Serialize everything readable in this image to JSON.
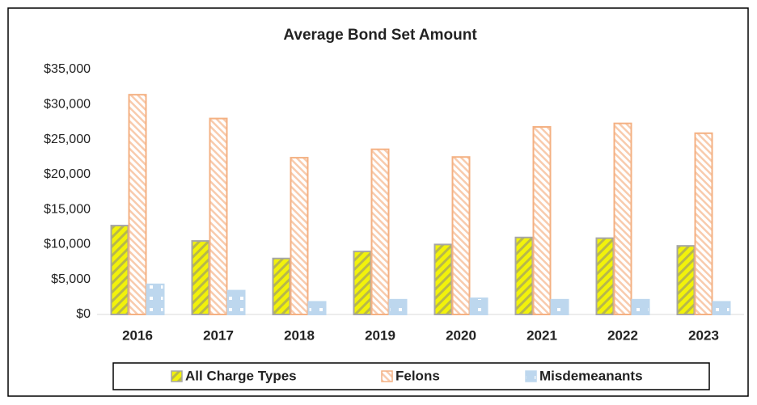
{
  "chart_data": {
    "type": "bar",
    "title": "Average Bond Set Amount",
    "categories": [
      "2016",
      "2017",
      "2018",
      "2019",
      "2020",
      "2021",
      "2022",
      "2023"
    ],
    "series": [
      {
        "name": "All Charge Types",
        "color": "#f2f20a",
        "values": [
          12700,
          10500,
          8000,
          9000,
          10000,
          11000,
          10900,
          9800
        ]
      },
      {
        "name": "Felons",
        "color": "#f8cbad",
        "values": [
          31400,
          28000,
          22400,
          23600,
          22500,
          26800,
          27300,
          25900
        ]
      },
      {
        "name": "Misdemeanants",
        "color": "#bdd7ee",
        "values": [
          4300,
          3400,
          1800,
          2100,
          2300,
          2100,
          2100,
          1800
        ]
      }
    ],
    "ylim": [
      0,
      35000
    ],
    "yticks": [
      {
        "value": 0,
        "label": "$0"
      },
      {
        "value": 5000,
        "label": "$5,000"
      },
      {
        "value": 10000,
        "label": "$10,000"
      },
      {
        "value": 15000,
        "label": "$15,000"
      },
      {
        "value": 20000,
        "label": "$20,000"
      },
      {
        "value": 25000,
        "label": "$25,000"
      },
      {
        "value": 30000,
        "label": "$30,000"
      },
      {
        "value": 35000,
        "label": "$35,000"
      }
    ],
    "grid": false,
    "legend": "bottom"
  }
}
